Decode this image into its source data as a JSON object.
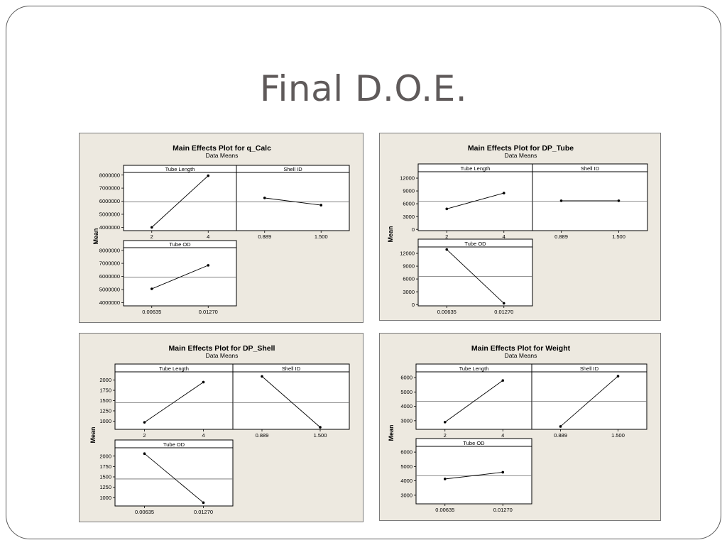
{
  "slide": {
    "title": "Final D.O.E."
  },
  "colors": {
    "panel_bg": "#ede9e0",
    "plot_bg": "#ffffff",
    "line": "#000000",
    "ref_line": "#6e6e6e"
  },
  "chart_data": [
    {
      "type": "line",
      "title": "Main Effects Plot for q_Calc",
      "subtitle": "Data Means",
      "ylabel": "Mean",
      "grand_mean": 5950000,
      "facets": [
        {
          "label": "Tube Length",
          "categories": [
            "2",
            "4"
          ],
          "values": [
            4000000,
            7950000
          ],
          "ylim": [
            3750000,
            8200000
          ],
          "yticks": [
            4000000,
            5000000,
            6000000,
            7000000,
            8000000
          ],
          "ytick_labels": [
            "4000000",
            "5000000",
            "6000000",
            "7000000",
            "8000000"
          ]
        },
        {
          "label": "Shell ID",
          "categories": [
            "0.889",
            "1.500"
          ],
          "values": [
            6250000,
            5700000
          ],
          "ylim": [
            3750000,
            8200000
          ],
          "yticks": [],
          "ytick_labels": []
        },
        {
          "label": "Tube OD",
          "categories": [
            "0.00635",
            "0.01270"
          ],
          "values": [
            5050000,
            6850000
          ],
          "ylim": [
            3750000,
            8200000
          ],
          "yticks": [
            4000000,
            5000000,
            6000000,
            7000000,
            8000000
          ],
          "ytick_labels": [
            "4000000",
            "5000000",
            "6000000",
            "7000000",
            "8000000"
          ]
        }
      ]
    },
    {
      "type": "line",
      "title": "Main Effects Plot for DP_Tube",
      "subtitle": "Data Means",
      "ylabel": "Mean",
      "grand_mean": 6600,
      "facets": [
        {
          "label": "Tube Length",
          "categories": [
            "2",
            "4"
          ],
          "values": [
            4800,
            8500
          ],
          "ylim": [
            -300,
            13500
          ],
          "yticks": [
            0,
            3000,
            6000,
            9000,
            12000
          ],
          "ytick_labels": [
            "0",
            "3000",
            "6000",
            "9000",
            "12000"
          ]
        },
        {
          "label": "Shell ID",
          "categories": [
            "0.889",
            "1.500"
          ],
          "values": [
            6700,
            6700
          ],
          "ylim": [
            -300,
            13500
          ],
          "yticks": [],
          "ytick_labels": []
        },
        {
          "label": "Tube OD",
          "categories": [
            "0.00635",
            "0.01270"
          ],
          "values": [
            12900,
            300
          ],
          "ylim": [
            -300,
            13500
          ],
          "yticks": [
            0,
            3000,
            6000,
            9000,
            12000
          ],
          "ytick_labels": [
            "0",
            "3000",
            "6000",
            "9000",
            "12000"
          ]
        }
      ]
    },
    {
      "type": "line",
      "title": "Main Effects Plot for DP_Shell",
      "subtitle": "Data Means",
      "ylabel": "Mean",
      "grand_mean": 1450,
      "facets": [
        {
          "label": "Tube Length",
          "categories": [
            "2",
            "4"
          ],
          "values": [
            970,
            1950
          ],
          "ylim": [
            800,
            2200
          ],
          "yticks": [
            1000,
            1250,
            1500,
            1750,
            2000
          ],
          "ytick_labels": [
            "1000",
            "1250",
            "1500",
            "1750",
            "2000"
          ]
        },
        {
          "label": "Shell ID",
          "categories": [
            "0.889",
            "1.500"
          ],
          "values": [
            2090,
            850
          ],
          "ylim": [
            800,
            2200
          ],
          "yticks": [],
          "ytick_labels": []
        },
        {
          "label": "Tube OD",
          "categories": [
            "0.00635",
            "0.01270"
          ],
          "values": [
            2060,
            880
          ],
          "ylim": [
            800,
            2200
          ],
          "yticks": [
            1000,
            1250,
            1500,
            1750,
            2000
          ],
          "ytick_labels": [
            "1000",
            "1250",
            "1500",
            "1750",
            "2000"
          ]
        }
      ]
    },
    {
      "type": "line",
      "title": "Main Effects Plot for Weight",
      "subtitle": "Data Means",
      "ylabel": "Mean",
      "grand_mean": 4350,
      "facets": [
        {
          "label": "Tube Length",
          "categories": [
            "2",
            "4"
          ],
          "values": [
            2900,
            5800
          ],
          "ylim": [
            2400,
            6400
          ],
          "yticks": [
            3000,
            4000,
            5000,
            6000
          ],
          "ytick_labels": [
            "3000",
            "4000",
            "5000",
            "6000"
          ]
        },
        {
          "label": "Shell ID",
          "categories": [
            "0.889",
            "1.500"
          ],
          "values": [
            2600,
            6100
          ],
          "ylim": [
            2400,
            6400
          ],
          "yticks": [],
          "ytick_labels": []
        },
        {
          "label": "Tube OD",
          "categories": [
            "0.00635",
            "0.01270"
          ],
          "values": [
            4130,
            4600
          ],
          "ylim": [
            2400,
            6400
          ],
          "yticks": [
            3000,
            4000,
            5000,
            6000
          ],
          "ytick_labels": [
            "3000",
            "4000",
            "5000",
            "6000"
          ]
        }
      ]
    }
  ]
}
